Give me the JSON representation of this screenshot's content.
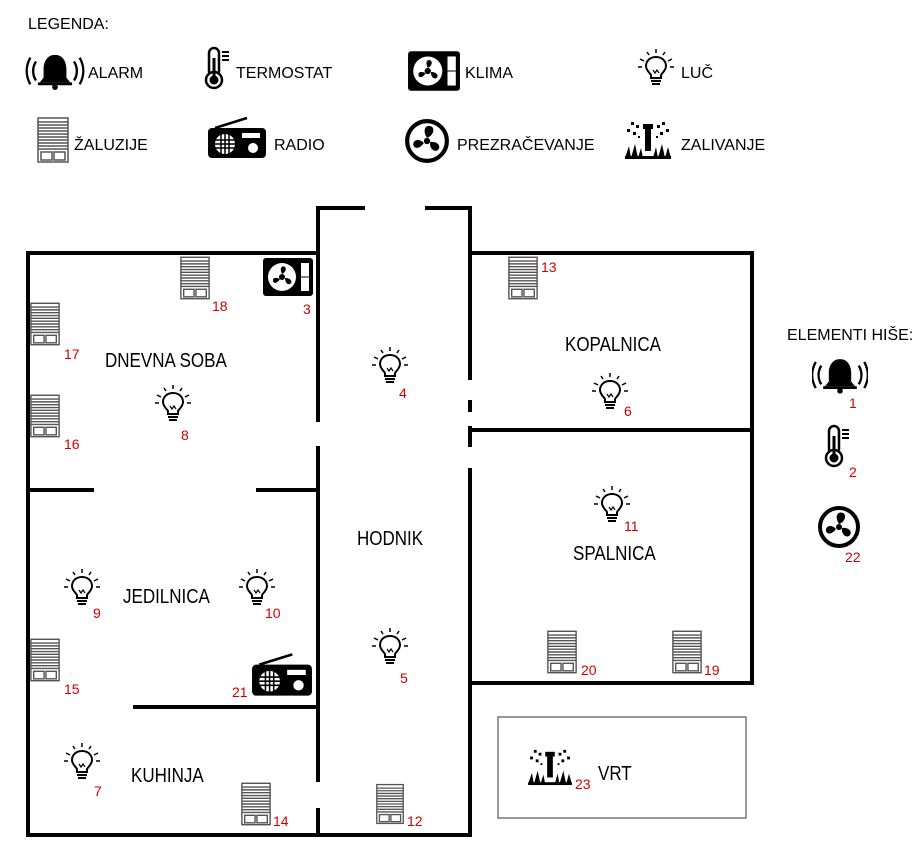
{
  "legend": {
    "title": "LEGENDA:",
    "items": [
      {
        "icon": "alarm-bell-icon",
        "label": "ALARM"
      },
      {
        "icon": "thermostat-icon",
        "label": "TERMOSTAT"
      },
      {
        "icon": "air-conditioner-icon",
        "label": "KLIMA"
      },
      {
        "icon": "light-bulb-icon",
        "label": "LUČ"
      },
      {
        "icon": "window-blinds-icon",
        "label": "ŽALUZIJE"
      },
      {
        "icon": "radio-icon",
        "label": "RADIO"
      },
      {
        "icon": "ventilation-fan-icon",
        "label": "PREZRAČEVANJE"
      },
      {
        "icon": "sprinkler-icon",
        "label": "ZALIVANJE"
      }
    ]
  },
  "rooms": {
    "living": "DNEVNA SOBA",
    "dining": "JEDILNICA",
    "kitchen": "KUHINJA",
    "hall": "HODNIK",
    "bathroom": "KOPALNICA",
    "bedroom": "SPALNICA",
    "garden": "VRT"
  },
  "house_elements": {
    "title": "ELEMENTI HIŠE:"
  },
  "devices": {
    "d1": {
      "type": "alarm",
      "number": "1"
    },
    "d2": {
      "type": "thermostat",
      "number": "2"
    },
    "d3": {
      "type": "klima",
      "number": "3"
    },
    "d4": {
      "type": "light",
      "number": "4"
    },
    "d5": {
      "type": "light",
      "number": "5"
    },
    "d6": {
      "type": "light",
      "number": "6"
    },
    "d7": {
      "type": "light",
      "number": "7"
    },
    "d8": {
      "type": "light",
      "number": "8"
    },
    "d9": {
      "type": "light",
      "number": "9"
    },
    "d10": {
      "type": "light",
      "number": "10"
    },
    "d11": {
      "type": "light",
      "number": "11"
    },
    "d12": {
      "type": "blinds",
      "number": "12"
    },
    "d13": {
      "type": "blinds",
      "number": "13"
    },
    "d14": {
      "type": "blinds",
      "number": "14"
    },
    "d15": {
      "type": "blinds",
      "number": "15"
    },
    "d16": {
      "type": "blinds",
      "number": "16"
    },
    "d17": {
      "type": "blinds",
      "number": "17"
    },
    "d18": {
      "type": "blinds",
      "number": "18"
    },
    "d19": {
      "type": "blinds",
      "number": "19"
    },
    "d20": {
      "type": "blinds",
      "number": "20"
    },
    "d21": {
      "type": "radio",
      "number": "21"
    },
    "d22": {
      "type": "ventilation",
      "number": "22"
    },
    "d23": {
      "type": "sprinkler",
      "number": "23"
    }
  },
  "colors": {
    "number": "#d00000",
    "wall": "#000000"
  }
}
